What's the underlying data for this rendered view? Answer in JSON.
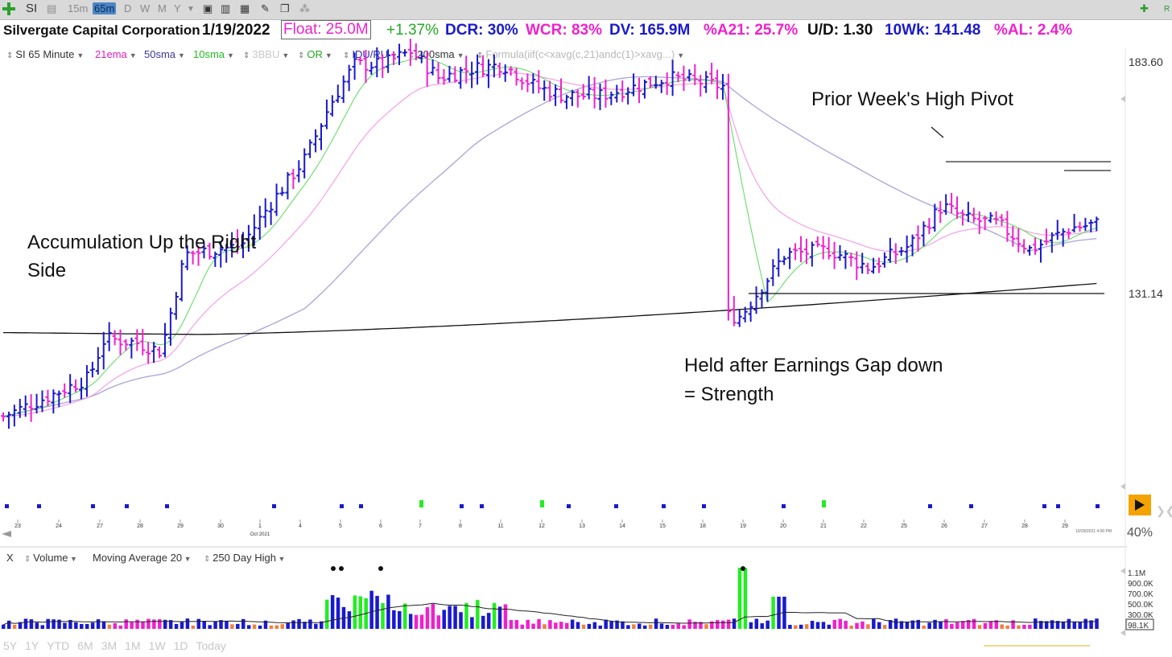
{
  "toolbar": {
    "symbol": "SI",
    "intervals": [
      "15m",
      "65m",
      "D",
      "W",
      "M",
      "Y"
    ],
    "selected_interval": "65m",
    "right_text": "R"
  },
  "header": {
    "company": "Silvergate Capital Corporation",
    "date": "1/19/2022",
    "float": "Float: 25.0M",
    "change": "+1.37%",
    "dcr": "DCR: 30%",
    "wcr": "WCR: 83%",
    "dv": "DV: 165.9M",
    "a21": "%A21: 25.7%",
    "ud": "U/D: 1.30",
    "wk10": "10Wk: 141.48",
    "al": "%AL: 2.4%"
  },
  "indicators": [
    {
      "label": "SI 65 Minute",
      "color": "#333333"
    },
    {
      "label": "21ema",
      "color": "#e020c0"
    },
    {
      "label": "50sma",
      "color": "#3a3aa0"
    },
    {
      "label": "10sma",
      "color": "#22bb22"
    },
    {
      "label": "3BBU",
      "color": "#c8c8c8"
    },
    {
      "label": "OR",
      "color": "#22aa22"
    },
    {
      "label": "IDU/RU",
      "color": "#2a2ab0"
    },
    {
      "label": "200sma",
      "color": "#333333"
    },
    {
      "label": "Formula(iif(c<xavg(c,21)andc(1)>xavg...)",
      "color": "#b8b8b8"
    }
  ],
  "annotations": {
    "left": "Accumulation Up the Right\nSide",
    "pivot": "Prior Week's High Pivot",
    "earnings": "Held after Earnings Gap down\n= Strength"
  },
  "price_labels": {
    "top": "183.60",
    "mid": "131.14"
  },
  "zoom": "40%",
  "volume_bar": {
    "items": [
      "Volume",
      "Moving Average 20",
      "250 Day High"
    ],
    "close_label": "X"
  },
  "volume_axis": [
    "1.1M",
    "900.0K",
    "700.0K",
    "500.0K",
    "300.0K",
    "98.1K"
  ],
  "date_stamp": "10/29/2021 4:00 PM",
  "periods": [
    "5Y",
    "1Y",
    "YTD",
    "6M",
    "3M",
    "1M",
    "1W",
    "1D",
    "Today"
  ],
  "colors": {
    "up": "#1a1acc",
    "down": "#ee22cc",
    "ema21": "#f4a0e4",
    "sma10": "#66dd66",
    "sma50": "#a8a4d8",
    "sma200": "#111111",
    "vol_up": "#1a1acc",
    "vol_down": "#ee22cc",
    "vol_green": "#22ee22",
    "vol_orange": "#f08040"
  },
  "chart_data": {
    "type": "bar",
    "subtype": "ohlc-65-minute",
    "title": "",
    "x_ticks": [
      "23",
      "24",
      "27",
      "28",
      "29",
      "30",
      "1",
      "4",
      "5",
      "6",
      "7",
      "8",
      "11",
      "12",
      "13",
      "14",
      "15",
      "18",
      "19",
      "20",
      "21",
      "22",
      "25",
      "26",
      "27",
      "28",
      "29"
    ],
    "x_month_label": "Oct 2021",
    "y_ticks": [
      183.6,
      131.14
    ],
    "ylim": [
      75,
      190
    ],
    "close_path": [
      [
        0,
        103
      ],
      [
        50,
        107
      ],
      [
        110,
        112
      ],
      [
        130,
        121
      ],
      [
        170,
        120
      ],
      [
        200,
        118
      ],
      [
        230,
        140
      ],
      [
        300,
        142
      ],
      [
        330,
        150
      ],
      [
        380,
        162
      ],
      [
        410,
        174
      ],
      [
        440,
        183
      ],
      [
        475,
        183
      ],
      [
        510,
        186
      ],
      [
        545,
        180
      ],
      [
        585,
        182
      ],
      [
        625,
        183
      ],
      [
        665,
        178
      ],
      [
        700,
        176
      ],
      [
        745,
        176
      ],
      [
        790,
        178
      ],
      [
        830,
        180
      ],
      [
        870,
        179
      ],
      [
        900,
        178
      ],
      [
        920,
        126
      ],
      [
        975,
        140
      ],
      [
        1030,
        141
      ],
      [
        1080,
        137
      ],
      [
        1130,
        142
      ],
      [
        1170,
        151
      ],
      [
        1200,
        148
      ],
      [
        1240,
        147
      ],
      [
        1280,
        141
      ],
      [
        1330,
        146
      ],
      [
        1365,
        147
      ]
    ],
    "gap_low": 131.14,
    "pivot_high": 161
  }
}
